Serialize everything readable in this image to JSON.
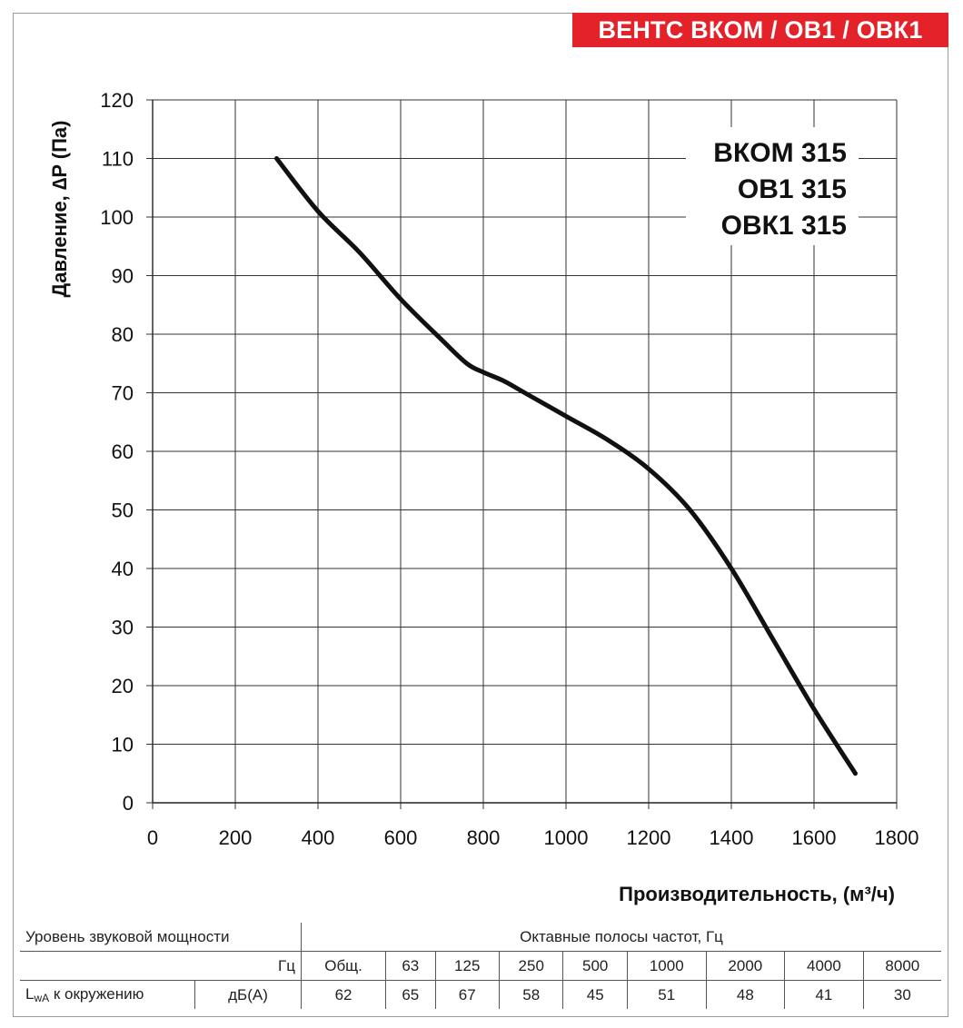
{
  "header": {
    "title": "ВЕНТС ВКОМ / ОВ1 / ОВК1"
  },
  "models": [
    "ВКОМ 315",
    "ОВ1 315",
    "ОВК1 315"
  ],
  "chart_data": {
    "type": "line",
    "xlabel": "Производительность, (м³/ч)",
    "ylabel": "Давление, ∆P (Па)",
    "xlim": [
      0,
      1800
    ],
    "ylim": [
      0,
      120
    ],
    "x_ticks": [
      0,
      200,
      400,
      600,
      800,
      1000,
      1200,
      1400,
      1600,
      1800
    ],
    "y_ticks": [
      0,
      10,
      20,
      30,
      40,
      50,
      60,
      70,
      80,
      90,
      100,
      110,
      120
    ],
    "grid": true,
    "series": [
      {
        "x": [
          300,
          400,
          500,
          600,
          700,
          760,
          800,
          850,
          900,
          1000,
          1100,
          1200,
          1300,
          1400,
          1500,
          1600,
          1700
        ],
        "y": [
          110,
          101,
          94,
          86,
          79,
          75,
          73.5,
          72,
          70,
          66,
          62,
          57,
          50,
          40,
          28,
          16,
          5
        ]
      }
    ]
  },
  "sound_table": {
    "row1": {
      "label": "Уровень звуковой мощности",
      "bands_label": "Октавные полосы частот, Гц"
    },
    "row2": {
      "unit": "Гц",
      "columns": [
        "Общ.",
        "63",
        "125",
        "250",
        "500",
        "1000",
        "2000",
        "4000",
        "8000"
      ]
    },
    "row3": {
      "label_main": "L",
      "label_sub": "wA",
      "label_rest": " к окружению",
      "unit": "дБ(А)",
      "values": [
        "62",
        "65",
        "67",
        "58",
        "45",
        "51",
        "48",
        "41",
        "30"
      ]
    }
  }
}
